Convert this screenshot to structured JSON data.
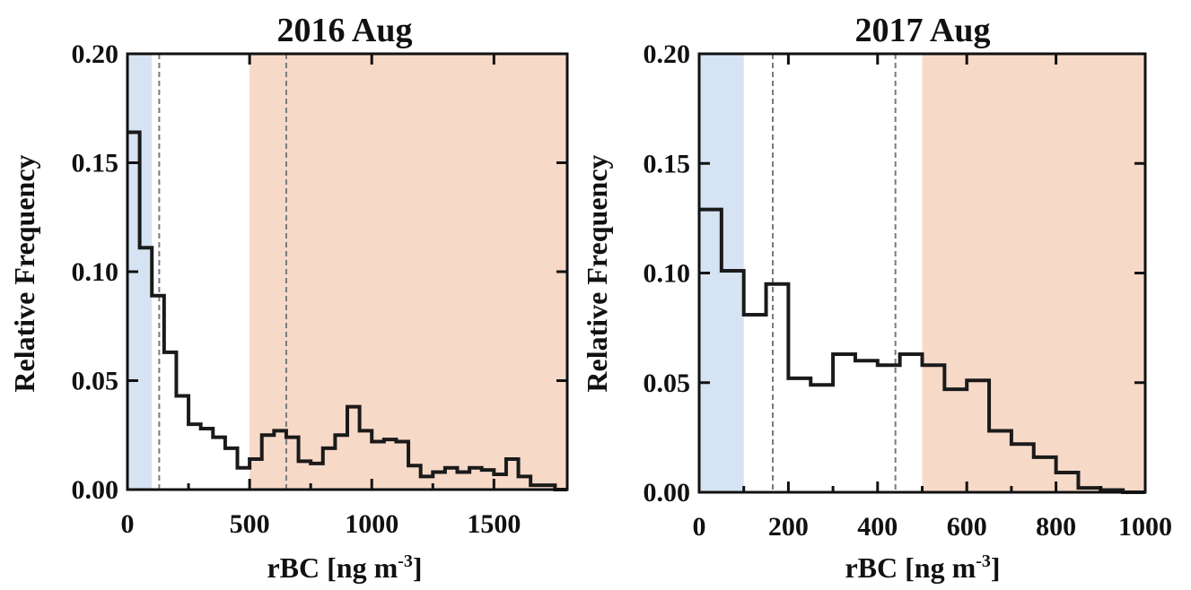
{
  "chart_data": [
    {
      "type": "histogram",
      "title": "2016 Aug",
      "xlabel": "rBC [ng m",
      "xlabel_sup": "-3",
      "xlabel_end": "]",
      "ylabel": "Relative Frequency",
      "xlim": [
        0,
        1800
      ],
      "ylim": [
        0,
        0.2
      ],
      "xticks": [
        0,
        500,
        1000,
        1500
      ],
      "xtick_labels": [
        "0",
        "500",
        "1000",
        "1500"
      ],
      "yticks": [
        0,
        0.05,
        0.1,
        0.15,
        0.2
      ],
      "ytick_labels": [
        "0.00",
        "0.05",
        "0.10",
        "0.15",
        "0.20"
      ],
      "bin_width": 50,
      "bins_start": 0,
      "values": [
        0.164,
        0.111,
        0.089,
        0.063,
        0.043,
        0.03,
        0.028,
        0.024,
        0.019,
        0.01,
        0.014,
        0.025,
        0.027,
        0.024,
        0.013,
        0.012,
        0.019,
        0.025,
        0.038,
        0.027,
        0.022,
        0.023,
        0.022,
        0.011,
        0.006,
        0.008,
        0.01,
        0.008,
        0.01,
        0.009,
        0.007,
        0.014,
        0.006,
        0.002,
        0.002,
        0.0
      ],
      "shaded_regions": [
        {
          "x0": 0,
          "x1": 100,
          "color": "#d5e3f3"
        },
        {
          "x0": 500,
          "x1": 1800,
          "color": "#f7d9c8"
        }
      ],
      "dashed_lines": [
        130,
        650
      ],
      "line_color": "#1a1a1a",
      "dashed_color": "#7a7a7a"
    },
    {
      "type": "histogram",
      "title": "2017 Aug",
      "xlabel": "rBC [ng m",
      "xlabel_sup": "-3",
      "xlabel_end": "]",
      "ylabel": "Relative Frequency",
      "xlim": [
        0,
        1000
      ],
      "ylim": [
        0,
        0.2
      ],
      "xticks": [
        0,
        200,
        400,
        600,
        800,
        1000
      ],
      "xtick_labels": [
        "0",
        "200",
        "400",
        "600",
        "800",
        "1000"
      ],
      "yticks": [
        0,
        0.05,
        0.1,
        0.15,
        0.2
      ],
      "ytick_labels": [
        "0.00",
        "0.05",
        "0.10",
        "0.15",
        "0.20"
      ],
      "bin_width": 50,
      "bins_start": 0,
      "values": [
        0.129,
        0.101,
        0.081,
        0.095,
        0.052,
        0.049,
        0.063,
        0.06,
        0.058,
        0.063,
        0.058,
        0.047,
        0.051,
        0.028,
        0.022,
        0.016,
        0.009,
        0.002,
        0.001,
        0.0
      ],
      "shaded_regions": [
        {
          "x0": 0,
          "x1": 100,
          "color": "#d5e3f3"
        },
        {
          "x0": 500,
          "x1": 1000,
          "color": "#f7d9c8"
        }
      ],
      "dashed_lines": [
        165,
        440
      ],
      "line_color": "#1a1a1a",
      "dashed_color": "#7a7a7a"
    }
  ]
}
